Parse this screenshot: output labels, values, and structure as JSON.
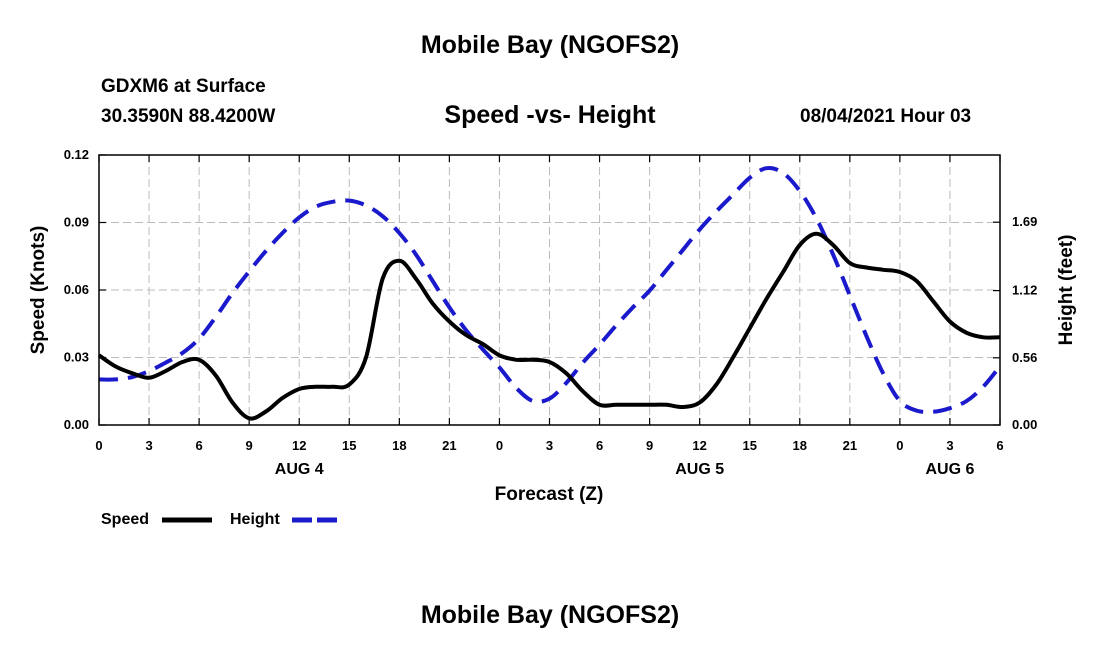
{
  "header": {
    "title": "Mobile Bay (NGOFS2)",
    "station": "GDXM6 at Surface",
    "coords": "30.3590N  88.4200W",
    "subtitle": "Speed -vs- Height",
    "datetime": "08/04/2021 Hour 03"
  },
  "footer": {
    "title": "Mobile Bay (NGOFS2)"
  },
  "legend": {
    "speed_label": "Speed",
    "height_label": "Height"
  },
  "colors": {
    "speed": "#000000",
    "height": "#1a1acc",
    "grid": "#bbbbbb"
  },
  "chart_data": {
    "type": "line",
    "title": "Speed -vs- Height",
    "xlabel": "Forecast (Z)",
    "ylabel_left": "Speed (Knots)",
    "ylabel_right": "Height (feet)",
    "x_unit": "hours from 00Z Aug 4",
    "xlim": [
      0,
      54
    ],
    "ylim_left": [
      0,
      0.12
    ],
    "ylim_right": [
      0,
      2.25
    ],
    "x_ticks": [
      {
        "x": 0,
        "label": "0"
      },
      {
        "x": 3,
        "label": "3"
      },
      {
        "x": 6,
        "label": "6"
      },
      {
        "x": 9,
        "label": "9"
      },
      {
        "x": 12,
        "label": "12"
      },
      {
        "x": 15,
        "label": "15"
      },
      {
        "x": 18,
        "label": "18"
      },
      {
        "x": 21,
        "label": "21"
      },
      {
        "x": 24,
        "label": "0"
      },
      {
        "x": 27,
        "label": "3"
      },
      {
        "x": 30,
        "label": "6"
      },
      {
        "x": 33,
        "label": "9"
      },
      {
        "x": 36,
        "label": "12"
      },
      {
        "x": 39,
        "label": "15"
      },
      {
        "x": 42,
        "label": "18"
      },
      {
        "x": 45,
        "label": "21"
      },
      {
        "x": 48,
        "label": "0"
      },
      {
        "x": 51,
        "label": "3"
      },
      {
        "x": 54,
        "label": "6"
      }
    ],
    "day_labels": [
      {
        "x": 12,
        "label": "AUG 4"
      },
      {
        "x": 36,
        "label": "AUG 5"
      },
      {
        "x": 51,
        "label": "AUG 6"
      }
    ],
    "y_ticks_left": [
      {
        "v": 0,
        "label": "0.00"
      },
      {
        "v": 0.03,
        "label": "0.03"
      },
      {
        "v": 0.06,
        "label": "0.06"
      },
      {
        "v": 0.09,
        "label": "0.09"
      },
      {
        "v": 0.12,
        "label": "0.12"
      }
    ],
    "y_ticks_right": [
      {
        "v": 0,
        "label": "0.00"
      },
      {
        "v": 0.56,
        "label": "0.56"
      },
      {
        "v": 1.12,
        "label": "1.12"
      },
      {
        "v": 1.69,
        "label": "1.69"
      }
    ],
    "grid": true,
    "legend_position": "bottom-left",
    "series": [
      {
        "name": "Speed",
        "axis": "left",
        "style": "solid",
        "x": [
          0,
          1,
          2,
          3,
          4,
          5,
          6,
          7,
          8,
          9,
          10,
          11,
          12,
          13,
          14,
          15,
          16,
          17,
          18,
          19,
          20,
          21,
          22,
          23,
          24,
          25,
          26,
          27,
          28,
          29,
          30,
          31,
          32,
          33,
          34,
          35,
          36,
          37,
          38,
          39,
          40,
          41,
          42,
          43,
          44,
          45,
          46,
          47,
          48,
          49,
          50,
          51,
          52,
          53,
          54
        ],
        "values": [
          0.031,
          0.026,
          0.023,
          0.021,
          0.024,
          0.028,
          0.029,
          0.022,
          0.01,
          0.003,
          0.006,
          0.012,
          0.016,
          0.017,
          0.017,
          0.018,
          0.03,
          0.065,
          0.073,
          0.065,
          0.054,
          0.046,
          0.04,
          0.036,
          0.031,
          0.029,
          0.029,
          0.028,
          0.023,
          0.015,
          0.009,
          0.009,
          0.009,
          0.009,
          0.009,
          0.008,
          0.01,
          0.018,
          0.03,
          0.043,
          0.056,
          0.068,
          0.08,
          0.085,
          0.08,
          0.072,
          0.07,
          0.069,
          0.068,
          0.064,
          0.055,
          0.046,
          0.041,
          0.039,
          0.039
        ]
      },
      {
        "name": "Height",
        "axis": "right",
        "style": "dashed",
        "x": [
          0,
          1,
          2,
          3,
          4,
          5,
          6,
          7,
          8,
          9,
          10,
          11,
          12,
          13,
          14,
          15,
          16,
          17,
          18,
          19,
          20,
          21,
          22,
          23,
          24,
          25,
          26,
          27,
          28,
          29,
          30,
          31,
          32,
          33,
          34,
          35,
          36,
          37,
          38,
          39,
          40,
          41,
          42,
          43,
          44,
          45,
          46,
          47,
          48,
          49,
          50,
          51,
          52,
          53,
          54
        ],
        "values": [
          0.38,
          0.38,
          0.4,
          0.45,
          0.52,
          0.6,
          0.72,
          0.9,
          1.1,
          1.28,
          1.45,
          1.6,
          1.73,
          1.82,
          1.86,
          1.87,
          1.83,
          1.74,
          1.6,
          1.42,
          1.2,
          0.98,
          0.79,
          0.63,
          0.48,
          0.31,
          0.2,
          0.22,
          0.35,
          0.52,
          0.67,
          0.83,
          0.98,
          1.12,
          1.29,
          1.46,
          1.63,
          1.78,
          1.92,
          2.06,
          2.14,
          2.1,
          1.95,
          1.72,
          1.42,
          1.08,
          0.74,
          0.43,
          0.2,
          0.12,
          0.11,
          0.14,
          0.2,
          0.32,
          0.49
        ]
      }
    ]
  }
}
